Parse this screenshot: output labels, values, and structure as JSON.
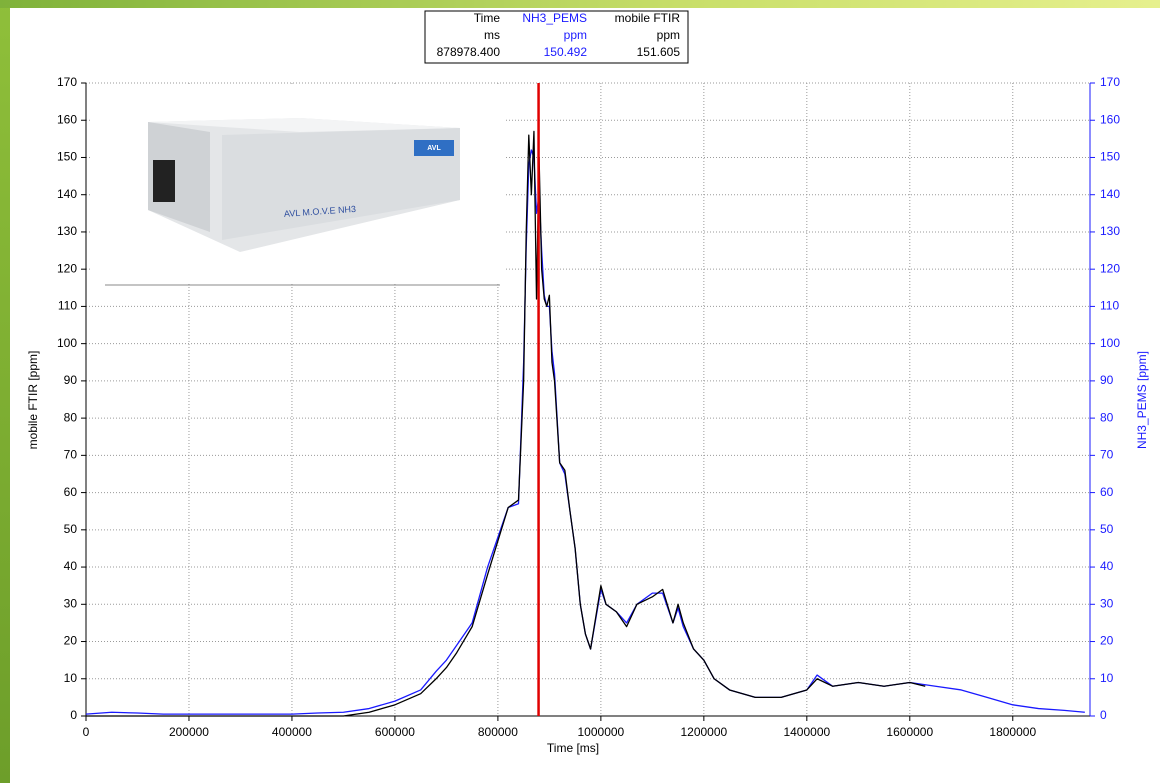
{
  "chart_data": {
    "type": "line",
    "x_label": "Time [ms]",
    "y_label": "mobile FTIR [ppm]",
    "y2_label": "NH3_PEMS [ppm]",
    "xlim": [
      0,
      1950000
    ],
    "xticks": [
      0,
      200000,
      400000,
      600000,
      800000,
      1000000,
      1200000,
      1400000,
      1600000,
      1800000
    ],
    "ylim": [
      0,
      170
    ],
    "yticks": [
      0,
      10,
      20,
      30,
      40,
      50,
      60,
      70,
      80,
      90,
      100,
      110,
      120,
      130,
      140,
      150,
      160,
      170
    ],
    "y2lim": [
      0,
      170
    ],
    "y2ticks": [
      0,
      10,
      20,
      30,
      40,
      50,
      60,
      70,
      80,
      90,
      100,
      110,
      120,
      130,
      140,
      150,
      160,
      170
    ],
    "grid": true,
    "series": [
      {
        "name": "NH3_PEMS",
        "color": "#1a1aff",
        "axis": "y2",
        "x": [
          0,
          50000,
          100000,
          150000,
          200000,
          300000,
          400000,
          450000,
          500000,
          550000,
          600000,
          650000,
          680000,
          700000,
          720000,
          750000,
          780000,
          800000,
          820000,
          840000,
          850000,
          855000,
          860000,
          865000,
          870000,
          875000,
          880000,
          885000,
          890000,
          895000,
          900000,
          905000,
          910000,
          920000,
          930000,
          940000,
          950000,
          960000,
          970000,
          980000,
          1000000,
          1010000,
          1030000,
          1050000,
          1070000,
          1100000,
          1120000,
          1140000,
          1150000,
          1160000,
          1180000,
          1200000,
          1220000,
          1250000,
          1300000,
          1350000,
          1400000,
          1420000,
          1450000,
          1500000,
          1550000,
          1600000,
          1650000,
          1700000,
          1750000,
          1800000,
          1850000,
          1900000,
          1940000
        ],
        "values": [
          0.5,
          1,
          0.8,
          0.5,
          0.5,
          0.5,
          0.5,
          0.8,
          1,
          2,
          4,
          7,
          12,
          15,
          19,
          25,
          40,
          48,
          56,
          57,
          95,
          126,
          148,
          152,
          150,
          135,
          140,
          125,
          113,
          110,
          110,
          98,
          92,
          68,
          65,
          55,
          45,
          30,
          22,
          18,
          34,
          30,
          28,
          25,
          30,
          33,
          33,
          25,
          29,
          24,
          18,
          15,
          10,
          7,
          5,
          5,
          7,
          11,
          8,
          9,
          8,
          9,
          8,
          7,
          5,
          3,
          2,
          1.5,
          1
        ]
      },
      {
        "name": "mobile FTIR",
        "color": "#000000",
        "x": [
          0,
          100000,
          200000,
          300000,
          400000,
          500000,
          550000,
          600000,
          650000,
          680000,
          700000,
          720000,
          750000,
          780000,
          800000,
          820000,
          840000,
          850000,
          855000,
          860000,
          865000,
          870000,
          875000,
          880000,
          885000,
          890000,
          895000,
          900000,
          905000,
          910000,
          920000,
          930000,
          940000,
          950000,
          960000,
          970000,
          980000,
          1000000,
          1010000,
          1030000,
          1050000,
          1070000,
          1100000,
          1120000,
          1140000,
          1150000,
          1160000,
          1180000,
          1200000,
          1220000,
          1250000,
          1300000,
          1350000,
          1400000,
          1420000,
          1450000,
          1500000,
          1550000,
          1600000,
          1630000
        ],
        "values": [
          0,
          0,
          0,
          0,
          0,
          0,
          1,
          3,
          6,
          10,
          13,
          17,
          24,
          38,
          47,
          56,
          58,
          90,
          130,
          156,
          140,
          157,
          112,
          150,
          120,
          112,
          110,
          113,
          95,
          90,
          68,
          66,
          55,
          45,
          30,
          22,
          18,
          35,
          30,
          28,
          24,
          30,
          32,
          34,
          25,
          30,
          25,
          18,
          15,
          10,
          7,
          5,
          5,
          7,
          10,
          8,
          9,
          8,
          9,
          8
        ]
      }
    ],
    "cursor_color": "#e00000",
    "readout": {
      "time_header": "Time",
      "units": [
        "ms",
        "ppm",
        "ppm"
      ],
      "values": [
        {
          "value": 878978.4,
          "label": "878978.400"
        },
        150.492,
        151.605
      ]
    }
  },
  "inset": {
    "label": "AVL M.O.V.E NH3",
    "logo": "AVL"
  }
}
